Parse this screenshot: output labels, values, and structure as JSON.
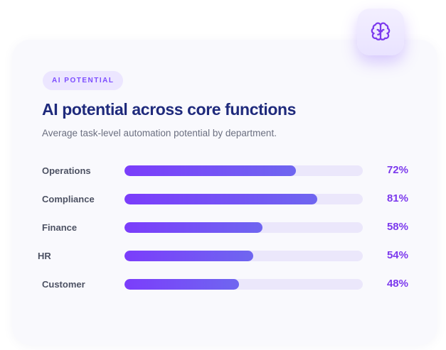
{
  "badge": "AI POTENTIAL",
  "icon": "brain-icon",
  "colors": {
    "accent": "#7c3aed",
    "bar_start": "#7b3dfb",
    "bar_end": "#6f66f0",
    "track": "#ebe7fb",
    "title": "#1f2a7c"
  },
  "chart_data": {
    "type": "bar",
    "orientation": "horizontal",
    "title": "AI potential across core functions",
    "subtitle": "Average task-level automation potential by department.",
    "categories": [
      "Operations",
      "Compliance",
      "Finance",
      "HR",
      "Customer"
    ],
    "values": [
      72,
      81,
      58,
      54,
      48
    ],
    "value_labels": [
      "72%",
      "81%",
      "58%",
      "54%",
      "48%"
    ],
    "unit": "%",
    "xlim": [
      0,
      100
    ],
    "grid": false,
    "legend": "none"
  }
}
